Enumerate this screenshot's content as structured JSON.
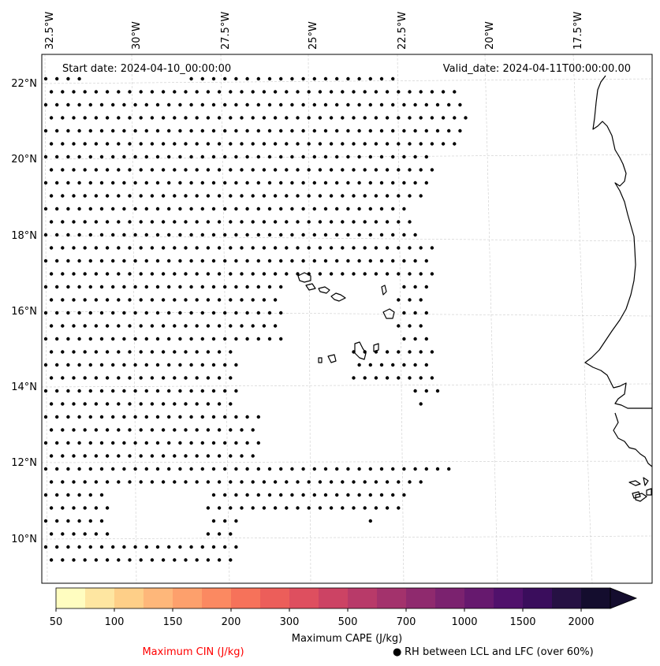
{
  "header": {
    "start_date": "Start date: 2024-04-10_00:00:00",
    "valid_date": "Valid_date: 2024-04-11T00:00:00.00"
  },
  "map": {
    "lon_labels": [
      "32.5°W",
      "30°W",
      "27.5°W",
      "25°W",
      "22.5°W",
      "20°W",
      "17.5°W"
    ],
    "lat_labels": [
      "22°N",
      "20°N",
      "18°N",
      "16°N",
      "14°N",
      "12°N",
      "10°N"
    ],
    "lat_range": [
      9,
      22.8
    ],
    "dot_marker": "black-dot",
    "coast_color": "#000000"
  },
  "colorbar": {
    "label": "Maximum CAPE (J/kg)",
    "ticks": [
      "50",
      "100",
      "150",
      "200",
      "300",
      "500",
      "700",
      "1000",
      "1500",
      "2000"
    ],
    "colors": [
      "#fffdc0",
      "#fee6a1",
      "#fecf88",
      "#feb77a",
      "#fda06c",
      "#fb8961",
      "#f6725a",
      "#ec5e5a",
      "#de4f5f",
      "#cc4364",
      "#b83a69",
      "#a3326c",
      "#8f2a6e",
      "#7b226f",
      "#66196e",
      "#50116b",
      "#3a0d5c",
      "#261143",
      "#140d2e"
    ]
  },
  "legend": {
    "cin": "Maximum CIN (J/kg)",
    "rh_symbol": "●",
    "rh": "RH between LCL and LFC (over 60%)",
    "cin_color": "#ff0000"
  }
}
